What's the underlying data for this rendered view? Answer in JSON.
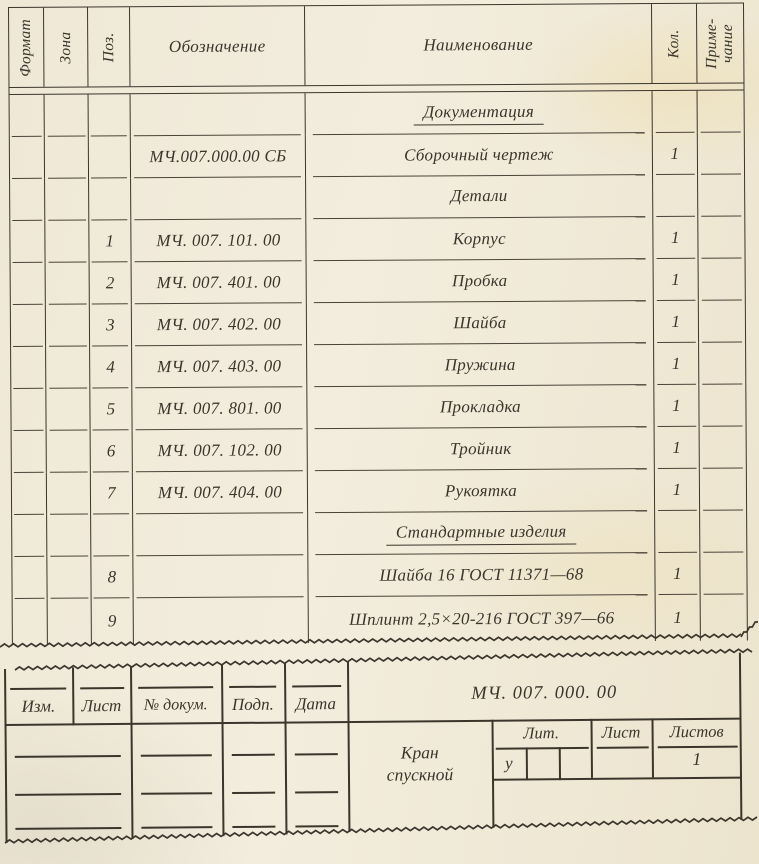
{
  "document_type": "Спецификация (assembly parts list, GOST drawing form)",
  "colors": {
    "ink": "#3b352c",
    "paper": "#f0e9d7"
  },
  "spec_table": {
    "headers": {
      "format": "Формат",
      "zone": "Зона",
      "pos": "Поз.",
      "designation": "Обозначение",
      "name": "Наименование",
      "qty": "Кол.",
      "note": "Приме-\nчание"
    },
    "rows": [
      {
        "type": "section",
        "name": "Документация",
        "underline": true
      },
      {
        "type": "item",
        "pos": "",
        "designation": "МЧ.007.000.00 СБ",
        "name": "Сборочный чертеж",
        "qty": "1"
      },
      {
        "type": "section",
        "name": "Детали",
        "underline": false
      },
      {
        "type": "item",
        "pos": "1",
        "designation": "МЧ. 007. 101. 00",
        "name": "Корпус",
        "qty": "1"
      },
      {
        "type": "item",
        "pos": "2",
        "designation": "МЧ. 007. 401. 00",
        "name": "Пробка",
        "qty": "1"
      },
      {
        "type": "item",
        "pos": "3",
        "designation": "МЧ. 007. 402. 00",
        "name": "Шайба",
        "qty": "1"
      },
      {
        "type": "item",
        "pos": "4",
        "designation": "МЧ. 007. 403. 00",
        "name": "Пружина",
        "qty": "1"
      },
      {
        "type": "item",
        "pos": "5",
        "designation": "МЧ. 007. 801. 00",
        "name": "Прокладка",
        "qty": "1"
      },
      {
        "type": "item",
        "pos": "6",
        "designation": "МЧ. 007. 102. 00",
        "name": "Тройник",
        "qty": "1"
      },
      {
        "type": "item",
        "pos": "7",
        "designation": "МЧ. 007. 404. 00",
        "name": "Рукоятка",
        "qty": "1"
      },
      {
        "type": "section",
        "name": "Стандартные изделия",
        "underline": true
      },
      {
        "type": "item",
        "pos": "8",
        "designation": "",
        "name": "Шайба 16  ГОСТ  11371—68",
        "qty": "1"
      },
      {
        "type": "item",
        "pos": "9",
        "designation": "",
        "name": "Шплинт 2,5×20-216  ГОСТ  397—66",
        "qty": "1"
      }
    ]
  },
  "title_block": {
    "doc_number": "МЧ. 007. 000. 00",
    "revision_header": {
      "izm": "Изм.",
      "list": "Лист",
      "doc": "№ докум.",
      "podp": "Подп.",
      "data": "Дата"
    },
    "product_name": "Кран\nспускной",
    "lit_header": {
      "lit": "Лит.",
      "list": "Лист",
      "listov": "Листов"
    },
    "lit_value": "у",
    "list_value": "",
    "listov_value": "1"
  }
}
